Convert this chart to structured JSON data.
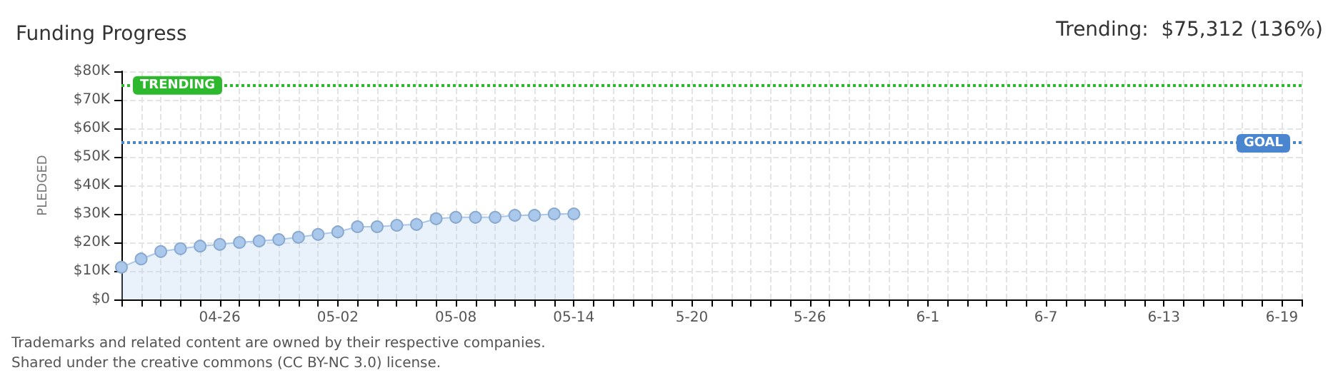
{
  "chart_data": {
    "type": "area",
    "title": "Funding Progress",
    "ylabel": "PLEDGED",
    "annotations": [
      "Trending:  $75,312 (136%)",
      "Trademarks and related content are owned by their respective companies.",
      "Shared under the creative commons (CC BY-NC 3.0) license."
    ],
    "categories": [
      null,
      null,
      null,
      null,
      null,
      "04-26",
      null,
      null,
      null,
      null,
      null,
      "05-02",
      null,
      null,
      null,
      null,
      null,
      "05-08",
      null,
      null,
      null,
      null,
      null,
      "05-14",
      null,
      null,
      null,
      null,
      null,
      "5-20",
      null,
      null,
      null,
      null,
      null,
      "5-26",
      null,
      null,
      null,
      null,
      null,
      "6-1",
      null,
      null,
      null,
      null,
      null,
      "6-7",
      null,
      null,
      null,
      null,
      null,
      "6-13",
      null,
      null,
      null,
      null,
      null,
      "6-19",
      null
    ],
    "series": [
      {
        "color": "#a9c8ec",
        "values": [
          11300,
          14200,
          16800,
          17800,
          18700,
          19300,
          20000,
          20500,
          21000,
          21800,
          22800,
          23700,
          25500,
          25500,
          26000,
          26300,
          28300,
          28800,
          28800,
          28800,
          29500,
          29500,
          30000,
          30000,
          null,
          null,
          null,
          null,
          null,
          null,
          null,
          null,
          null,
          null,
          null,
          null,
          null,
          null,
          null,
          null,
          null,
          null,
          null,
          null,
          null,
          null,
          null,
          null,
          null,
          null,
          null,
          null,
          null,
          null,
          null,
          null,
          null,
          null,
          null,
          null,
          null
        ]
      }
    ],
    "ylim": [
      0,
      80000
    ],
    "yticks": [
      {
        "value": 0,
        "label": "$0"
      },
      {
        "value": 10000,
        "label": "$10K"
      },
      {
        "value": 20000,
        "label": "$20K"
      },
      {
        "value": 30000,
        "label": "$30K"
      },
      {
        "value": 40000,
        "label": "$40K"
      },
      {
        "value": 50000,
        "label": "$50K"
      },
      {
        "value": 60000,
        "label": "$60K"
      },
      {
        "value": 70000,
        "label": "$70K"
      },
      {
        "value": 80000,
        "label": "$80K"
      }
    ],
    "ref_lines": [
      {
        "axis": "y",
        "value": 75312,
        "label": "TRENDING",
        "color": "#2db82d",
        "line_style": "dotted"
      },
      {
        "axis": "y",
        "value": 55000,
        "label": "GOAL",
        "color": "#4a86d0",
        "line_style": "dotted"
      }
    ],
    "grid": true,
    "marker": "circle"
  }
}
